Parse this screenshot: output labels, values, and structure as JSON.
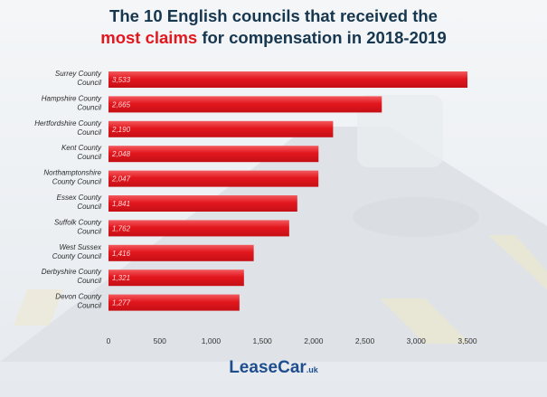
{
  "title": {
    "line1": "The 10 English councils that received the",
    "line2_accent": "most claims",
    "line2_rest": "for compensation in 2018-2019"
  },
  "chart_data": {
    "type": "bar",
    "orientation": "horizontal",
    "categories": [
      [
        "Surrey County",
        "Council"
      ],
      [
        "Hampshire County",
        "Council"
      ],
      [
        "Hertfordshire County",
        "Council"
      ],
      [
        "Kent County",
        "Council"
      ],
      [
        "Northamptonshire",
        "County Council"
      ],
      [
        "Essex County",
        "Council"
      ],
      [
        "Suffolk County",
        "Council"
      ],
      [
        "West Sussex",
        "County Council"
      ],
      [
        "Derbyshire County",
        "Council"
      ],
      [
        "Devon County",
        "Council"
      ]
    ],
    "values": [
      3533,
      2665,
      2190,
      2048,
      2047,
      1841,
      1762,
      1416,
      1321,
      1277
    ],
    "value_labels": [
      "3,533",
      "2,665",
      "2,190",
      "2,048",
      "2,047",
      "1,841",
      "1,762",
      "1,416",
      "1,321",
      "1,277"
    ],
    "xlim": [
      0,
      3500
    ],
    "xticks": [
      0,
      500,
      1000,
      1500,
      2000,
      2500,
      3000,
      3500
    ],
    "xtick_labels": [
      "0",
      "500",
      "1,000",
      "1,500",
      "2,000",
      "2,500",
      "3,000",
      "3,500"
    ],
    "bar_color": "#e3171e",
    "grid": false
  },
  "logo": {
    "text_a": "Lea",
    "text_b": "se",
    "text_c": "Car",
    "tld": ".uk"
  },
  "colors": {
    "title": "#17374f",
    "accent": "#e3171e",
    "logo": "#1f4e8f"
  }
}
